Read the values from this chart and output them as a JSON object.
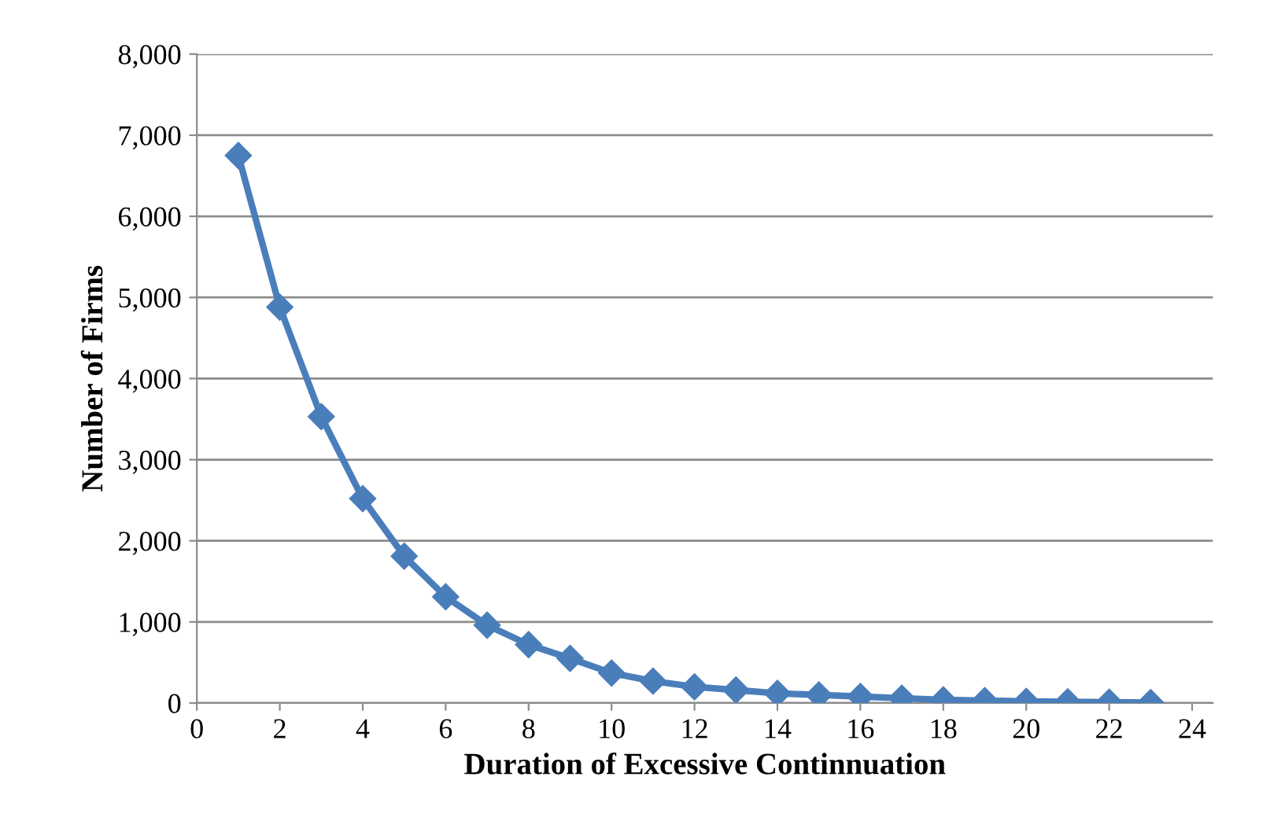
{
  "chart_data": {
    "type": "line",
    "xlabel": "Duration of Excessive Continnuation",
    "ylabel": "Number of Firms",
    "x": [
      1,
      2,
      3,
      4,
      5,
      6,
      7,
      8,
      9,
      10,
      11,
      12,
      13,
      14,
      15,
      16,
      17,
      18,
      19,
      20,
      21,
      22,
      23
    ],
    "series": [
      {
        "color": "#4a7ebb",
        "values": [
          6750,
          4880,
          3530,
          2520,
          1810,
          1310,
          960,
          720,
          550,
          370,
          270,
          200,
          160,
          120,
          100,
          80,
          60,
          40,
          30,
          20,
          15,
          10,
          5
        ]
      }
    ],
    "xlim": [
      0,
      24.5
    ],
    "xticks": [
      0,
      2,
      4,
      6,
      8,
      10,
      12,
      14,
      16,
      18,
      20,
      22,
      24
    ],
    "ylim": [
      0,
      8000
    ],
    "yticks": [
      {
        "value": 0,
        "label": "0"
      },
      {
        "value": 1000,
        "label": "1,000"
      },
      {
        "value": 2000,
        "label": "2,000"
      },
      {
        "value": 3000,
        "label": "3,000"
      },
      {
        "value": 4000,
        "label": "4,000"
      },
      {
        "value": 5000,
        "label": "5,000"
      },
      {
        "value": 6000,
        "label": "6,000"
      },
      {
        "value": 7000,
        "label": "7,000"
      },
      {
        "value": 8000,
        "label": "8,000"
      }
    ],
    "grid": "y",
    "marker": "diamond",
    "line_style": "solid"
  }
}
